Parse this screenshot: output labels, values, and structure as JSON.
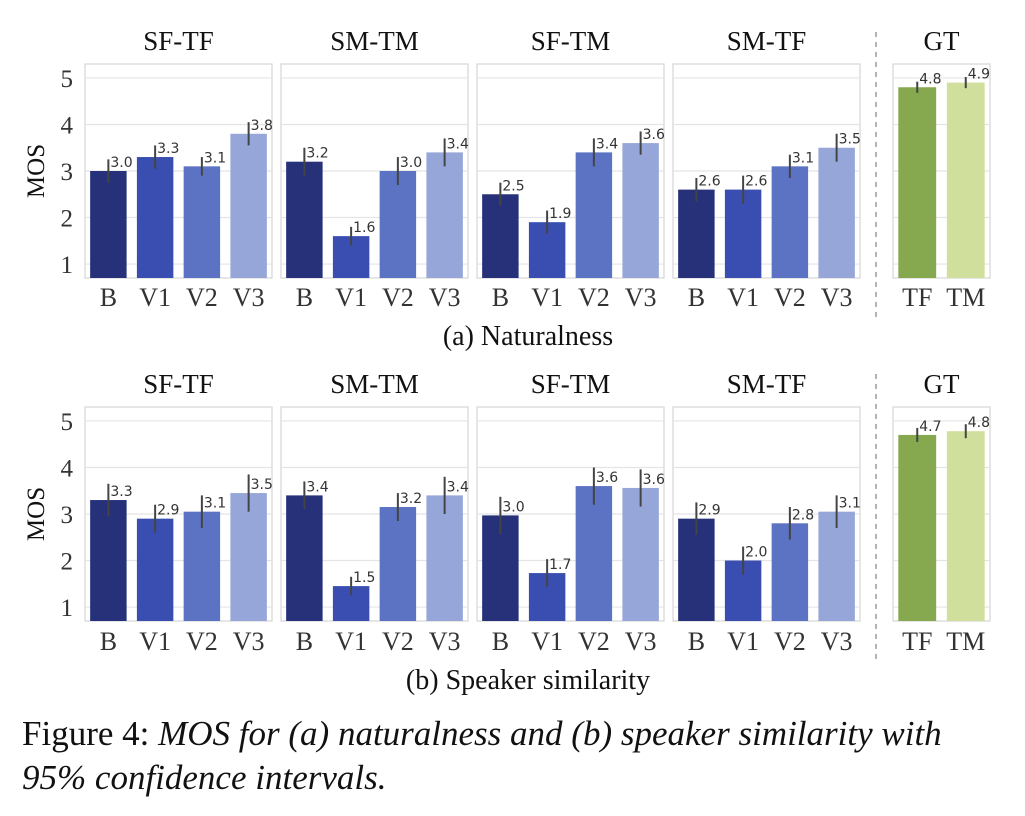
{
  "figure": {
    "caption_label": "Figure 4:",
    "caption_text": "MOS for (a) naturalness and (b) speaker similarity with 95% confidence intervals."
  },
  "colors": {
    "B": "#26317a",
    "V1": "#3a4db0",
    "V2": "#5c72c2",
    "V3": "#97a6d9",
    "TF": "#86a84e",
    "TM": "#d0e09c"
  },
  "chart_data": [
    {
      "type": "bar",
      "title": "(a) Naturalness",
      "ylabel": "MOS",
      "ylim": [
        0.7,
        5.3
      ],
      "yticks": [
        1,
        2,
        3,
        4,
        5
      ],
      "grid": true,
      "panels": [
        {
          "title": "SF-TF",
          "categories": [
            "B",
            "V1",
            "V2",
            "V3"
          ],
          "values": [
            3.0,
            3.3,
            3.1,
            3.8
          ],
          "value_labels": [
            "3.0",
            "3.3",
            "3.1",
            "3.8"
          ],
          "ci": [
            0.25,
            0.25,
            0.2,
            0.25
          ]
        },
        {
          "title": "SM-TM",
          "categories": [
            "B",
            "V1",
            "V2",
            "V3"
          ],
          "values": [
            3.2,
            1.6,
            3.0,
            3.4
          ],
          "value_labels": [
            "3.2",
            "1.6",
            "3.0",
            "3.4"
          ],
          "ci": [
            0.3,
            0.2,
            0.3,
            0.3
          ]
        },
        {
          "title": "SF-TM",
          "categories": [
            "B",
            "V1",
            "V2",
            "V3"
          ],
          "values": [
            2.5,
            1.9,
            3.4,
            3.6
          ],
          "value_labels": [
            "2.5",
            "1.9",
            "3.4",
            "3.6"
          ],
          "ci": [
            0.25,
            0.25,
            0.3,
            0.25
          ]
        },
        {
          "title": "SM-TF",
          "categories": [
            "B",
            "V1",
            "V2",
            "V3"
          ],
          "values": [
            2.6,
            2.6,
            3.1,
            3.5
          ],
          "value_labels": [
            "2.6",
            "2.6",
            "3.1",
            "3.5"
          ],
          "ci": [
            0.25,
            0.3,
            0.25,
            0.3
          ]
        },
        {
          "title": "GT",
          "categories": [
            "TF",
            "TM"
          ],
          "values": [
            4.8,
            4.9
          ],
          "value_labels": [
            "4.8",
            "4.9"
          ],
          "ci": [
            0.12,
            0.12
          ]
        }
      ]
    },
    {
      "type": "bar",
      "title": "(b) Speaker similarity",
      "ylabel": "MOS",
      "ylim": [
        0.7,
        5.3
      ],
      "yticks": [
        1,
        2,
        3,
        4,
        5
      ],
      "grid": true,
      "panels": [
        {
          "title": "SF-TF",
          "categories": [
            "B",
            "V1",
            "V2",
            "V3"
          ],
          "values": [
            3.3,
            2.9,
            3.05,
            3.45
          ],
          "value_labels": [
            "3.3",
            "2.9",
            "3.1",
            "3.5"
          ],
          "ci": [
            0.35,
            0.3,
            0.35,
            0.4
          ]
        },
        {
          "title": "SM-TM",
          "categories": [
            "B",
            "V1",
            "V2",
            "V3"
          ],
          "values": [
            3.4,
            1.45,
            3.15,
            3.4
          ],
          "value_labels": [
            "3.4",
            "1.5",
            "3.2",
            "3.4"
          ],
          "ci": [
            0.3,
            0.2,
            0.3,
            0.4
          ]
        },
        {
          "title": "SF-TM",
          "categories": [
            "B",
            "V1",
            "V2",
            "V3"
          ],
          "values": [
            2.97,
            1.73,
            3.6,
            3.56
          ],
          "value_labels": [
            "3.0",
            "1.7",
            "3.6",
            "3.6"
          ],
          "ci": [
            0.4,
            0.3,
            0.4,
            0.4
          ]
        },
        {
          "title": "SM-TF",
          "categories": [
            "B",
            "V1",
            "V2",
            "V3"
          ],
          "values": [
            2.9,
            2.0,
            2.8,
            3.05
          ],
          "value_labels": [
            "2.9",
            "2.0",
            "2.8",
            "3.1"
          ],
          "ci": [
            0.35,
            0.3,
            0.35,
            0.35
          ]
        },
        {
          "title": "GT",
          "categories": [
            "TF",
            "TM"
          ],
          "values": [
            4.7,
            4.78
          ],
          "value_labels": [
            "4.7",
            "4.8"
          ],
          "ci": [
            0.15,
            0.15
          ]
        }
      ]
    }
  ]
}
